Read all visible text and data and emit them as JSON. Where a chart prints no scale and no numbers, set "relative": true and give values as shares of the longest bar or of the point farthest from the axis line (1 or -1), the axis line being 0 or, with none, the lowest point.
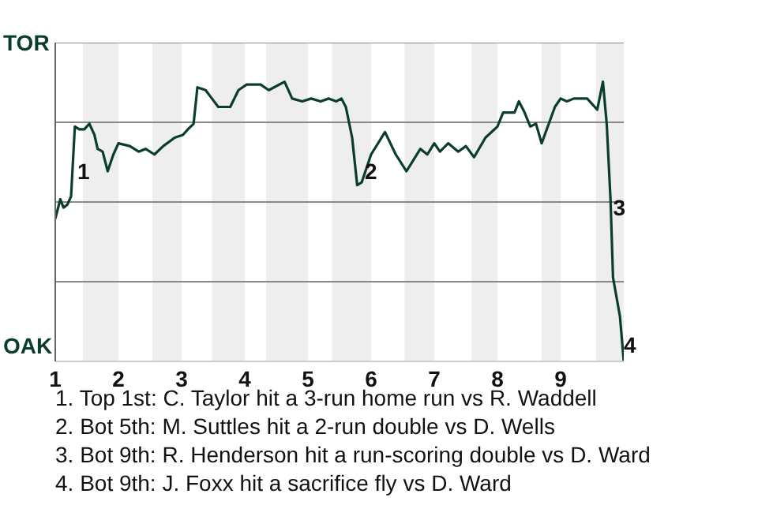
{
  "chart_data": {
    "type": "line",
    "relative": true,
    "xlim": [
      1,
      10
    ],
    "xticks": [
      1,
      2,
      3,
      4,
      5,
      6,
      7,
      8,
      9
    ],
    "grid": "y",
    "legend": false,
    "marker": "none",
    "line_style": "solid",
    "x": [
      1,
      1.08,
      1.13,
      1.19,
      1.25,
      1.31,
      1.38,
      1.46,
      1.54,
      1.62,
      1.67,
      1.75,
      1.83,
      1.92,
      2,
      2.18,
      2.32,
      2.43,
      2.57,
      2.71,
      2.89,
      3.02,
      3.1,
      3.19,
      3.25,
      3.38,
      3.48,
      3.58,
      3.77,
      3.9,
      4.03,
      4.25,
      4.38,
      4.63,
      4.75,
      4.91,
      5.05,
      5.2,
      5.33,
      5.45,
      5.53,
      5.6,
      5.7,
      5.78,
      5.85,
      6,
      6.22,
      6.39,
      6.56,
      6.78,
      6.89,
      7,
      7.09,
      7.22,
      7.38,
      7.5,
      7.63,
      7.81,
      8,
      8.09,
      8.27,
      8.34,
      8.43,
      8.52,
      8.61,
      8.7,
      8.91,
      9,
      9.1,
      9.21,
      9.42,
      9.58,
      9.67,
      9.73,
      9.79,
      9.83,
      9.94,
      10
    ],
    "series": [
      {
        "color": "#0b3d2e",
        "values": [
          0.51,
          0.58,
          0.55,
          0.56,
          0.59,
          0.84,
          0.83,
          0.83,
          0.85,
          0.81,
          0.76,
          0.75,
          0.68,
          0.74,
          0.78,
          0.77,
          0.75,
          0.76,
          0.74,
          0.77,
          0.8,
          0.81,
          0.83,
          0.85,
          0.98,
          0.97,
          0.94,
          0.91,
          0.91,
          0.97,
          0.99,
          0.99,
          0.97,
          1,
          0.94,
          0.93,
          0.94,
          0.93,
          0.94,
          0.93,
          0.94,
          0.91,
          0.8,
          0.63,
          0.64,
          0.74,
          0.82,
          0.74,
          0.68,
          0.76,
          0.74,
          0.78,
          0.75,
          0.78,
          0.75,
          0.77,
          0.73,
          0.8,
          0.84,
          0.89,
          0.89,
          0.93,
          0.89,
          0.84,
          0.85,
          0.78,
          0.91,
          0.94,
          0.93,
          0.94,
          0.94,
          0.9,
          1,
          0.85,
          0.58,
          0.3,
          0.16,
          0
        ]
      }
    ],
    "bands": [
      {
        "axis": "x",
        "from": 1.44,
        "to": 2,
        "color": "#eeeeee"
      },
      {
        "axis": "x",
        "from": 2.54,
        "to": 3,
        "color": "#eeeeee"
      },
      {
        "axis": "x",
        "from": 3.48,
        "to": 4,
        "color": "#eeeeee"
      },
      {
        "axis": "x",
        "from": 4.34,
        "to": 5,
        "color": "#eeeeee"
      },
      {
        "axis": "x",
        "from": 5.38,
        "to": 6,
        "color": "#eeeeee"
      },
      {
        "axis": "x",
        "from": 6.53,
        "to": 7,
        "color": "#eeeeee"
      },
      {
        "axis": "x",
        "from": 7.59,
        "to": 8,
        "color": "#eeeeee"
      },
      {
        "axis": "x",
        "from": 8.7,
        "to": 9,
        "color": "#eeeeee"
      },
      {
        "axis": "x",
        "from": 9.56,
        "to": 10,
        "color": "#eeeeee"
      }
    ],
    "annotations": [
      "TOR",
      "OAK",
      {
        "text": "1",
        "x": 1.35,
        "y": 0.68
      },
      {
        "text": "2",
        "x": 5.9,
        "y": 0.68
      },
      {
        "text": "3",
        "x": 9.83,
        "y": 0.55
      },
      {
        "text": "4",
        "x": 10,
        "y": 0.06
      },
      "1. Top 1st: C. Taylor hit a 3-run home run vs R. Waddell",
      "2. Bot 5th: M. Suttles hit a 2-run double vs D. Wells",
      "3. Bot 9th: R. Henderson hit a run-scoring double vs D. Ward",
      "4. Bot 9th: J. Foxx hit a sacrifice fly vs D. Ward"
    ]
  }
}
